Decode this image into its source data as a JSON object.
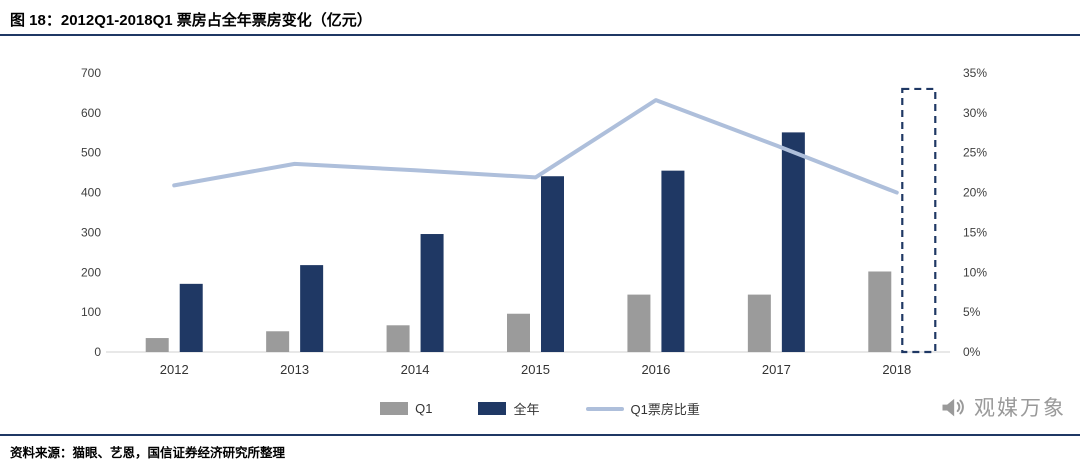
{
  "header": {
    "title": "图 18：2012Q1-2018Q1 票房占全年票房变化（亿元）"
  },
  "footer": {
    "source": "资料来源：猫眼、艺恩，国信证券经济研究所整理"
  },
  "watermark": {
    "text": "观媒万象",
    "icon": "megaphone-icon"
  },
  "colors": {
    "navy": "#1F3864",
    "gray": "#9B9B9B",
    "line_blue": "#AEBFDB",
    "rule": "#1F3864",
    "axis_line": "#D0D0D0"
  },
  "chart_data": {
    "type": "combo-bar-line",
    "title": "2012Q1-2018Q1 票房占全年票房变化（亿元）",
    "categories": [
      "2012",
      "2013",
      "2014",
      "2015",
      "2016",
      "2017",
      "2018"
    ],
    "series": [
      {
        "name": "Q1",
        "type": "bar",
        "color": "#9B9B9B",
        "values": [
          35,
          52,
          67,
          96,
          144,
          144,
          202
        ]
      },
      {
        "name": "全年",
        "type": "bar",
        "color": "#1F3864",
        "values": [
          171,
          218,
          296,
          441,
          455,
          551,
          null
        ]
      },
      {
        "name": "Q1票房比重",
        "type": "line",
        "axis": "right",
        "color": "#AEBFDB",
        "values": [
          20.9,
          23.6,
          22.8,
          21.9,
          31.6,
          25.9,
          20.0
        ]
      }
    ],
    "forecast_bar": {
      "category": "2018",
      "value": 660,
      "color": "#1F3864",
      "style": "dashed-outline"
    },
    "left_axis": {
      "min": 0,
      "max": 700,
      "step": 100,
      "ticks": [
        "0",
        "100",
        "200",
        "300",
        "400",
        "500",
        "600",
        "700"
      ]
    },
    "right_axis": {
      "min": 0,
      "max": 35,
      "step": 5,
      "ticks": [
        "0%",
        "5%",
        "10%",
        "15%",
        "20%",
        "25%",
        "30%",
        "35%"
      ]
    },
    "legend": [
      {
        "label": "Q1",
        "color": "#9B9B9B",
        "type": "square"
      },
      {
        "label": "全年",
        "color": "#1F3864",
        "type": "square"
      },
      {
        "label": "Q1票房比重",
        "color": "#AEBFDB",
        "type": "line"
      }
    ],
    "grid": "off",
    "legend_position": "bottom-center"
  }
}
